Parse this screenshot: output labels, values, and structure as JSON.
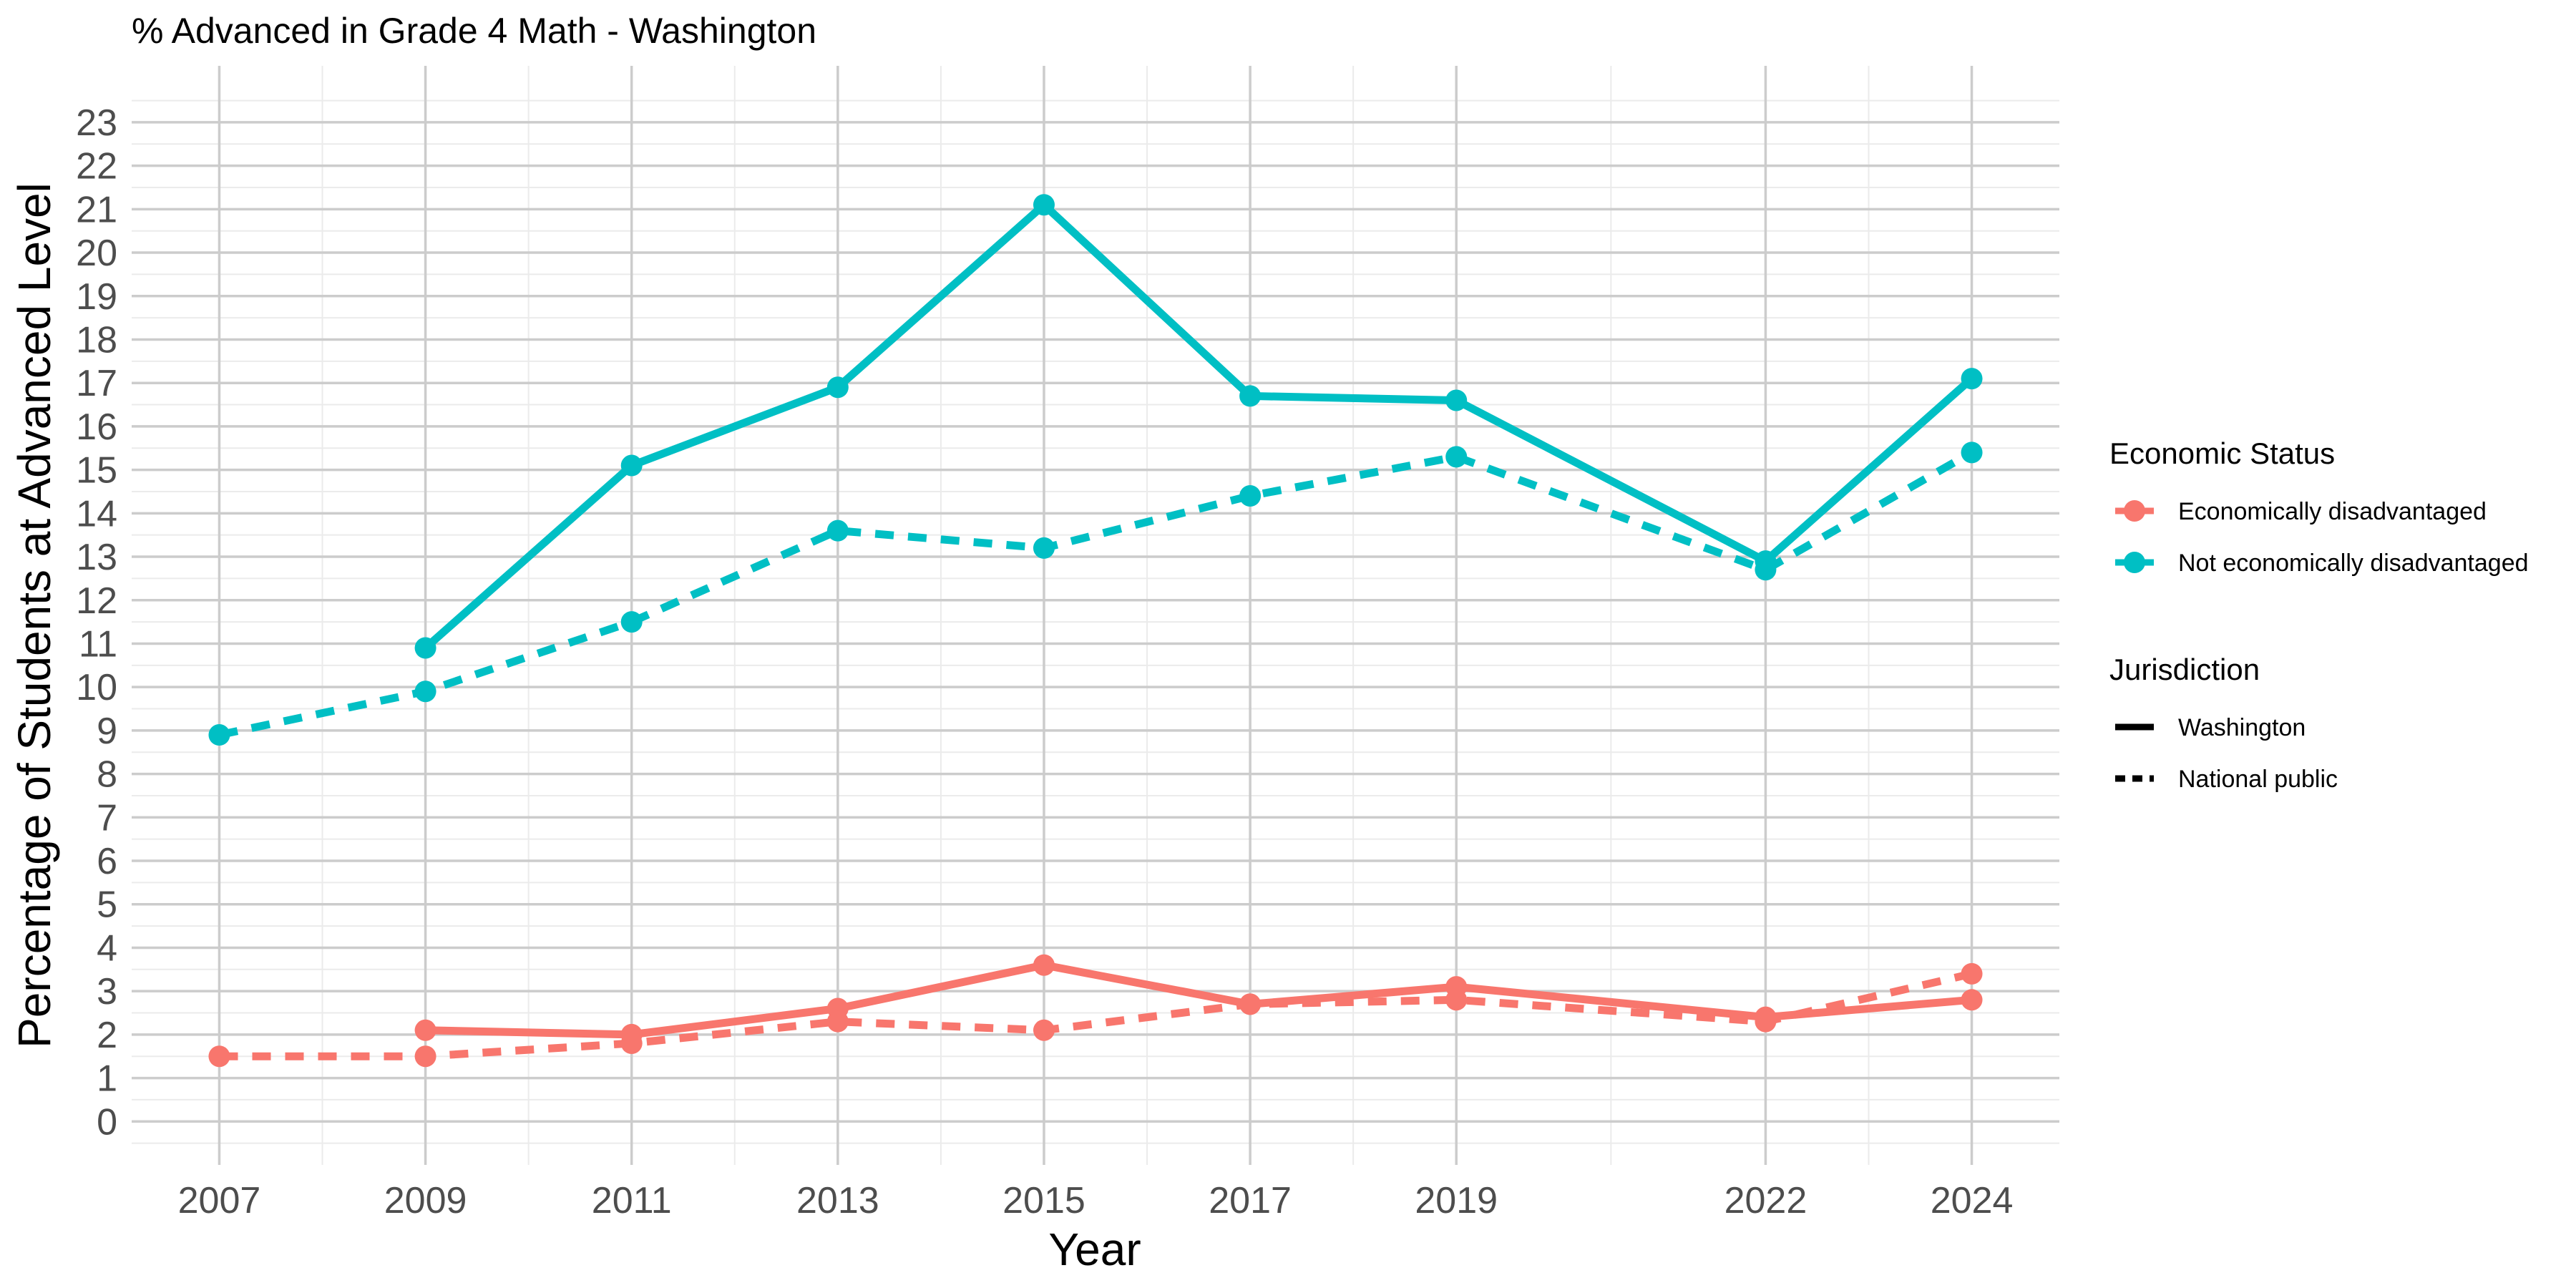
{
  "chart_data": {
    "type": "line",
    "title": "% Advanced in Grade 4 Math - Washington",
    "xlabel": "Year",
    "ylabel": "Percentage of Students at Advanced Level",
    "x_ticks": [
      2007,
      2009,
      2011,
      2013,
      2015,
      2017,
      2019,
      2022,
      2024
    ],
    "y_ticks": [
      0,
      1,
      2,
      3,
      4,
      5,
      6,
      7,
      8,
      9,
      10,
      11,
      12,
      13,
      14,
      15,
      16,
      17,
      18,
      19,
      20,
      21,
      22,
      23
    ],
    "xlim": [
      2006.15,
      2024.85
    ],
    "ylim": [
      -1,
      24.3
    ],
    "grid": true,
    "legend_position": "right",
    "colors": {
      "economically_disadvantaged": "#F8766D",
      "not_economically_disadvantaged": "#00BFC4",
      "grid_major": "#cccccc",
      "grid_minor": "#ebebeb"
    },
    "legend": {
      "color_title": "Economic Status",
      "color_items": [
        "Economically disadvantaged",
        "Not economically disadvantaged"
      ],
      "linetype_title": "Jurisdiction",
      "linetype_items": [
        "Washington",
        "National public"
      ]
    },
    "series": [
      {
        "name": "Not economically disadvantaged",
        "jurisdiction": "Washington",
        "color_key": "not_economically_disadvantaged",
        "dashed": false,
        "x": [
          2009,
          2011,
          2013,
          2015,
          2017,
          2019,
          2022,
          2024
        ],
        "y": [
          10.9,
          15.1,
          16.9,
          21.1,
          16.7,
          16.6,
          12.9,
          17.1
        ]
      },
      {
        "name": "Not economically disadvantaged",
        "jurisdiction": "National public",
        "color_key": "not_economically_disadvantaged",
        "dashed": true,
        "x": [
          2007,
          2009,
          2011,
          2013,
          2015,
          2017,
          2019,
          2022,
          2024
        ],
        "y": [
          8.9,
          9.9,
          11.5,
          13.6,
          13.2,
          14.4,
          15.3,
          12.7,
          15.4
        ]
      },
      {
        "name": "Economically disadvantaged",
        "jurisdiction": "Washington",
        "color_key": "economically_disadvantaged",
        "dashed": false,
        "x": [
          2009,
          2011,
          2013,
          2015,
          2017,
          2019,
          2022,
          2024
        ],
        "y": [
          2.1,
          2.0,
          2.6,
          3.6,
          2.7,
          3.1,
          2.4,
          2.8
        ]
      },
      {
        "name": "Economically disadvantaged",
        "jurisdiction": "National public",
        "color_key": "economically_disadvantaged",
        "dashed": true,
        "x": [
          2007,
          2009,
          2011,
          2013,
          2015,
          2017,
          2019,
          2022,
          2024
        ],
        "y": [
          1.5,
          1.5,
          1.8,
          2.3,
          2.1,
          2.7,
          2.8,
          2.3,
          3.4
        ]
      }
    ]
  }
}
